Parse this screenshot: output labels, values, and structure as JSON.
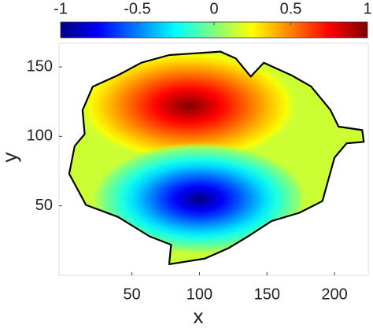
{
  "chart_data": {
    "type": "field",
    "xlabel": "x",
    "ylabel": "y",
    "xlim": [
      -4,
      225
    ],
    "xticks": [
      50,
      100,
      150,
      200
    ],
    "ylim": [
      0,
      167
    ],
    "yticks": [
      50,
      100,
      150
    ],
    "clim": [
      -1,
      1
    ],
    "cticks": [
      -1,
      -0.5,
      0,
      0.5,
      1
    ],
    "colormap": "jet",
    "background_value": 0.15,
    "peaks": {
      "x": [
        92,
        100
      ],
      "y": [
        122,
        55
      ],
      "values": [
        1,
        -1
      ]
    },
    "boundary": {
      "x": [
        77.6,
        115.5,
        127,
        138,
        147.6,
        168,
        182.6,
        197,
        203,
        220.5,
        221.7,
        209,
        200,
        191,
        174,
        153.4,
        136,
        121,
        104,
        77.6,
        79,
        63,
        39.7,
        16,
        3.5,
        7.6,
        15,
        13.4,
        21,
        39.7,
        57
      ],
      "y": [
        158.5,
        161,
        156,
        143,
        153,
        144,
        136,
        119,
        107,
        104.5,
        96,
        95,
        84.7,
        53.4,
        45,
        39,
        28,
        19.3,
        12,
        8,
        22,
        28,
        42,
        50.6,
        73,
        93,
        101.7,
        118.8,
        135.8,
        144,
        153
      ]
    }
  }
}
